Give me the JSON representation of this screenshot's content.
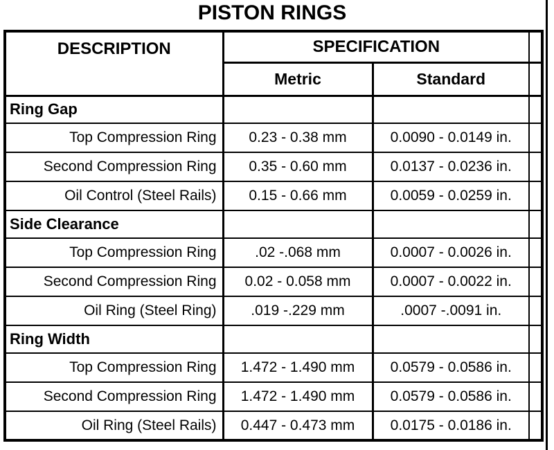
{
  "title": "PISTON RINGS",
  "colors": {
    "ink": "#000000",
    "paper": "#ffffff"
  },
  "table": {
    "headers": {
      "description": "DESCRIPTION",
      "specification": "SPECIFICATION",
      "metric": "Metric",
      "standard": "Standard"
    },
    "sections": [
      {
        "name": "Ring Gap",
        "rows": [
          {
            "description": "Top Compression Ring",
            "metric": "0.23 - 0.38 mm",
            "standard": "0.0090 - 0.0149 in."
          },
          {
            "description": "Second Compression Ring",
            "metric": "0.35 - 0.60 mm",
            "standard": "0.0137 - 0.0236 in."
          },
          {
            "description": "Oil Control (Steel Rails)",
            "metric": "0.15 - 0.66 mm",
            "standard": "0.0059 - 0.0259 in."
          }
        ]
      },
      {
        "name": "Side Clearance",
        "rows": [
          {
            "description": "Top Compression Ring",
            "metric": ".02 -.068 mm",
            "standard": "0.0007 - 0.0026 in."
          },
          {
            "description": "Second Compression Ring",
            "metric": "0.02 - 0.058 mm",
            "standard": "0.0007 - 0.0022 in."
          },
          {
            "description": "Oil Ring (Steel Ring)",
            "metric": ".019 -.229 mm",
            "standard": ".0007 -.0091 in."
          }
        ]
      },
      {
        "name": "Ring Width",
        "rows": [
          {
            "description": "Top Compression Ring",
            "metric": "1.472 - 1.490 mm",
            "standard": "0.0579 - 0.0586 in."
          },
          {
            "description": "Second Compression Ring",
            "metric": "1.472 - 1.490 mm",
            "standard": "0.0579 - 0.0586 in."
          },
          {
            "description": "Oil Ring (Steel Rails)",
            "metric": "0.447 - 0.473 mm",
            "standard": "0.0175 - 0.0186 in."
          }
        ]
      }
    ]
  }
}
